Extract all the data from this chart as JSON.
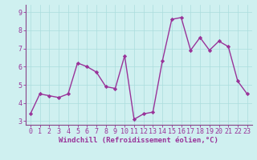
{
  "x": [
    0,
    1,
    2,
    3,
    4,
    5,
    6,
    7,
    8,
    9,
    10,
    11,
    12,
    13,
    14,
    15,
    16,
    17,
    18,
    19,
    20,
    21,
    22,
    23
  ],
  "y": [
    3.4,
    4.5,
    4.4,
    4.3,
    4.5,
    6.2,
    6.0,
    5.7,
    4.9,
    4.8,
    6.6,
    3.1,
    3.4,
    3.5,
    6.3,
    8.6,
    8.7,
    6.9,
    7.6,
    6.9,
    7.4,
    7.1,
    5.2,
    4.5
  ],
  "line_color": "#993399",
  "marker": "D",
  "marker_size": 2.2,
  "linewidth": 1.0,
  "xlabel": "Windchill (Refroidissement éolien,°C)",
  "xlabel_fontsize": 6.5,
  "ylim": [
    2.8,
    9.4
  ],
  "xlim": [
    -0.5,
    23.5
  ],
  "yticks": [
    3,
    4,
    5,
    6,
    7,
    8,
    9
  ],
  "xticks": [
    0,
    1,
    2,
    3,
    4,
    5,
    6,
    7,
    8,
    9,
    10,
    11,
    12,
    13,
    14,
    15,
    16,
    17,
    18,
    19,
    20,
    21,
    22,
    23
  ],
  "bg_color": "#cff0f0",
  "grid_color": "#aadddd",
  "spine_color": "#884488",
  "tick_color": "#993399",
  "tick_fontsize": 6.0
}
